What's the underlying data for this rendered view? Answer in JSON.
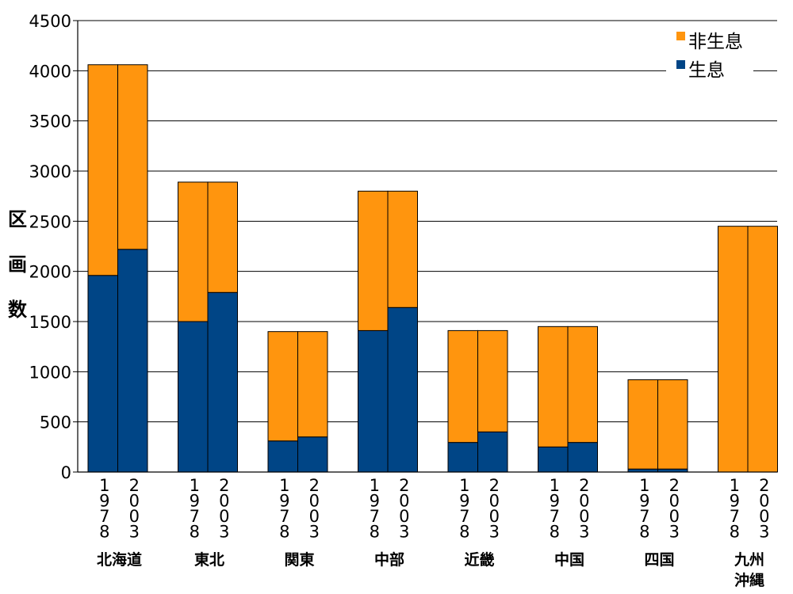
{
  "chart_data": {
    "type": "bar",
    "stacked": true,
    "title": "",
    "xlabel": "",
    "ylabel": "区画数",
    "ylim": [
      0,
      4500
    ],
    "yticks": [
      0,
      500,
      1000,
      1500,
      2000,
      2500,
      3000,
      3500,
      4000,
      4500
    ],
    "grid": true,
    "legend_position": "top-right",
    "groups": [
      {
        "region": "北海道",
        "years": [
          "1978",
          "2003"
        ]
      },
      {
        "region": "東北",
        "years": [
          "1978",
          "2003"
        ]
      },
      {
        "region": "関東",
        "years": [
          "1978",
          "2003"
        ]
      },
      {
        "region": "中部",
        "years": [
          "1978",
          "2003"
        ]
      },
      {
        "region": "近畿",
        "years": [
          "1978",
          "2003"
        ]
      },
      {
        "region": "中国",
        "years": [
          "1978",
          "2003"
        ]
      },
      {
        "region": "四国",
        "years": [
          "1978",
          "2003"
        ]
      },
      {
        "region": "九州\n沖縄",
        "years": [
          "1978",
          "2003"
        ]
      }
    ],
    "series": [
      {
        "name": "生息",
        "color": "#004586",
        "values": [
          [
            1960,
            2220
          ],
          [
            1500,
            1790
          ],
          [
            310,
            350
          ],
          [
            1410,
            1640
          ],
          [
            295,
            400
          ],
          [
            250,
            295
          ],
          [
            30,
            30
          ],
          [
            0,
            0
          ]
        ]
      },
      {
        "name": "非生息",
        "color": "#ff950e",
        "values": [
          [
            2100,
            1840
          ],
          [
            1390,
            1100
          ],
          [
            1090,
            1050
          ],
          [
            1390,
            1160
          ],
          [
            1115,
            1010
          ],
          [
            1200,
            1155
          ],
          [
            890,
            890
          ],
          [
            2450,
            2450
          ]
        ]
      }
    ],
    "legend_order": [
      "非生息",
      "生息"
    ]
  },
  "colors": {
    "grid": "#000000",
    "background": "#ffffff"
  }
}
